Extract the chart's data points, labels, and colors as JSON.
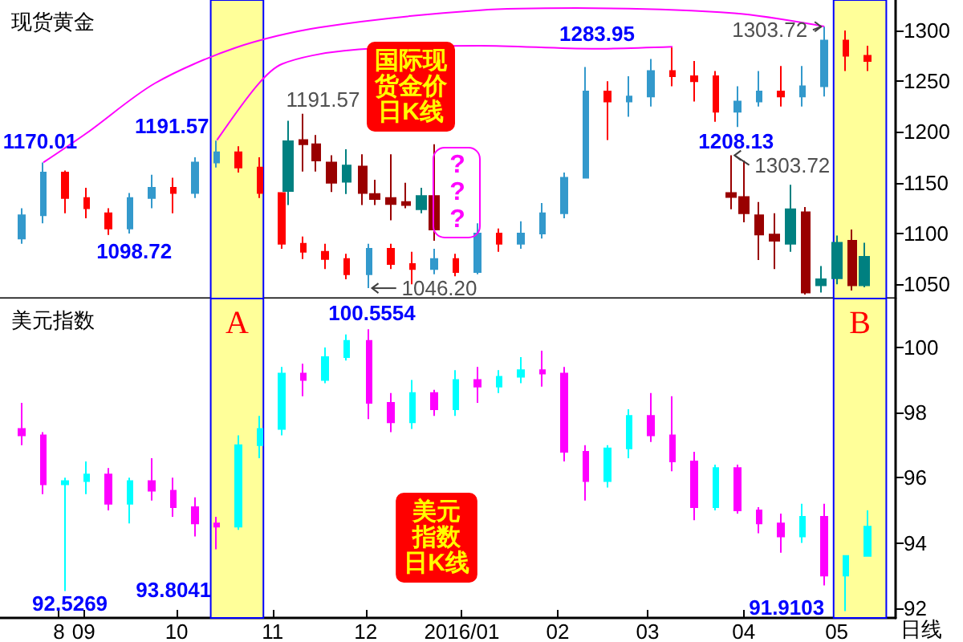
{
  "chart_data": [
    {
      "type": "candlestick",
      "title": "现货黄金",
      "x": [
        "2015-08-12",
        "2015-08-19",
        "2015-08-26",
        "2015-09-02",
        "2015-09-09",
        "2015-09-16",
        "2015-09-23",
        "2015-09-30",
        "2015-10-07",
        "2015-10-14",
        "2015-10-21",
        "2015-10-28",
        "2015-11-04",
        "2015-11-11",
        "2015-11-18",
        "2015-11-25",
        "2015-12-02",
        "2015-12-09",
        "2015-12-16",
        "2015-12-23",
        "2015-12-30",
        "2016-01-06",
        "2016-01-13",
        "2016-01-20",
        "2016-01-27",
        "2016-02-03",
        "2016-02-10",
        "2016-02-17",
        "2016-02-24",
        "2016-03-02",
        "2016-03-09",
        "2016-03-16",
        "2016-03-23",
        "2016-03-30",
        "2016-04-06",
        "2016-04-13",
        "2016-04-20",
        "2016-04-27",
        "2016-05-04",
        "2016-05-11"
      ],
      "series": [
        {
          "ohlc": [
            [
              1095,
              1125,
              1090,
              1118
            ],
            [
              1118,
              1170.01,
              1110,
              1160
            ],
            [
              1160,
              1162,
              1120,
              1135
            ],
            [
              1135,
              1145,
              1115,
              1125
            ],
            [
              1120,
              1125,
              1098.72,
              1105
            ],
            [
              1105,
              1140,
              1100,
              1135
            ],
            [
              1135,
              1158,
              1125,
              1145
            ],
            [
              1145,
              1155,
              1120,
              1140
            ],
            [
              1140,
              1175,
              1135,
              1170
            ],
            [
              1170,
              1191.57,
              1165,
              1180
            ],
            [
              1180,
              1186,
              1160,
              1165
            ],
            [
              1165,
              1175,
              1135,
              1140
            ],
            [
              1140,
              1140,
              1085,
              1090
            ],
            [
              1090,
              1097,
              1075,
              1082
            ],
            [
              1082,
              1090,
              1065,
              1075
            ],
            [
              1075,
              1080,
              1055,
              1060
            ],
            [
              1060,
              1090,
              1046.2,
              1085
            ],
            [
              1085,
              1090,
              1065,
              1070
            ],
            [
              1070,
              1082,
              1050,
              1065
            ],
            [
              1065,
              1085,
              1060,
              1075
            ],
            [
              1075,
              1080,
              1058,
              1062
            ],
            [
              1062,
              1110,
              1060,
              1100
            ],
            [
              1100,
              1105,
              1082,
              1090
            ],
            [
              1090,
              1112,
              1085,
              1100
            ],
            [
              1100,
              1130,
              1095,
              1120
            ],
            [
              1120,
              1160,
              1115,
              1155
            ],
            [
              1155,
              1264,
              1155,
              1240
            ],
            [
              1240,
              1250,
              1192,
              1230
            ],
            [
              1230,
              1255,
              1215,
              1235
            ],
            [
              1235,
              1272,
              1225,
              1260
            ],
            [
              1260,
              1283.95,
              1245,
              1255
            ],
            [
              1255,
              1270,
              1230,
              1250
            ],
            [
              1255,
              1260,
              1210,
              1220
            ],
            [
              1220,
              1245,
              1205,
              1230
            ],
            [
              1230,
              1260,
              1225,
              1240
            ],
            [
              1240,
              1265,
              1225,
              1235
            ],
            [
              1235,
              1265,
              1225,
              1245
            ],
            [
              1245,
              1303.72,
              1235,
              1290
            ],
            [
              1290,
              1300,
              1260,
              1275
            ],
            [
              1275,
              1285,
              1260,
              1270
            ]
          ],
          "colors": [
            "#3399cc",
            "#3399cc",
            "#ff0000",
            "#ff0000",
            "#ff0000",
            "#3399cc",
            "#3399cc",
            "#ff0000",
            "#3399cc",
            "#3399cc",
            "#ff0000",
            "#ff0000",
            "#ff0000",
            "#ff0000",
            "#ff0000",
            "#ff0000",
            "#3399cc",
            "#ff0000",
            "#ff0000",
            "#3399cc",
            "#ff0000",
            "#3399cc",
            "#ff0000",
            "#3399cc",
            "#3399cc",
            "#3399cc",
            "#3399cc",
            "#ff0000",
            "#3399cc",
            "#3399cc",
            "#ff0000",
            "#ff0000",
            "#ff0000",
            "#3399cc",
            "#3399cc",
            "#ff0000",
            "#3399cc",
            "#3399cc",
            "#ff0000",
            "#ff0000"
          ]
        },
        {
          "x": [
            "2015-11-06",
            "2015-11-11",
            "2015-11-15",
            "2015-11-20",
            "2015-11-25",
            "2015-11-30",
            "2015-12-04",
            "2015-12-09",
            "2015-12-14",
            "2015-12-19",
            "2015-12-23"
          ],
          "ohlc": [
            [
              1142,
              1211,
              1128,
              1191
            ],
            [
              1192,
              1218,
              1161,
              1188
            ],
            [
              1188,
              1197,
              1161,
              1172
            ],
            [
              1170,
              1177,
              1141,
              1150
            ],
            [
              1151,
              1183,
              1139,
              1167
            ],
            [
              1166,
              1178,
              1128,
              1140
            ],
            [
              1139,
              1153,
              1128,
              1134
            ],
            [
              1135,
              1178,
              1113,
              1129
            ],
            [
              1131,
              1150,
              1125,
              1128
            ],
            [
              1124,
              1145,
              1120,
              1137
            ],
            [
              1137,
              1188,
              1093,
              1104
            ]
          ],
          "colors": [
            "#008080",
            "#990000",
            "#990000",
            "#990000",
            "#008080",
            "#990000",
            "#990000",
            "#990000",
            "#990000",
            "#008080",
            "#990000"
          ]
        },
        {
          "x": [
            "2016-03-28",
            "2016-04-01",
            "2016-04-06",
            "2016-04-11",
            "2016-04-16",
            "2016-04-21",
            "2016-04-26",
            "2016-05-01",
            "2016-05-06",
            "2016-05-10"
          ],
          "ohlc": [
            [
              1140,
              1177,
              1124,
              1136
            ],
            [
              1136,
              1172,
              1111,
              1120
            ],
            [
              1118,
              1131,
              1074,
              1099
            ],
            [
              1099,
              1120,
              1065,
              1093
            ],
            [
              1090,
              1148,
              1082,
              1124
            ],
            [
              1121,
              1126,
              1040,
              1042
            ],
            [
              1049,
              1068,
              1042,
              1055
            ],
            [
              1056,
              1098,
              1050,
              1091
            ],
            [
              1093,
              1104,
              1044,
              1049
            ],
            [
              1049,
              1091,
              1047,
              1077
            ]
          ],
          "colors": [
            "#990000",
            "#990000",
            "#990000",
            "#990000",
            "#008080",
            "#990000",
            "#008080",
            "#008080",
            "#990000",
            "#008080"
          ]
        },
        {
          "type": "line",
          "color": "#ff00ff",
          "x": [
            "2015-08-19",
            "2015-09-02",
            "2015-09-24",
            "2015-10-20",
            "2015-11-16",
            "2016-01-07",
            "2016-02-07",
            "2016-03-29",
            "2016-04-27"
          ],
          "values": [
            1170,
            1199,
            1248,
            1283,
            1303,
            1320,
            1322,
            1317,
            1304
          ]
        },
        {
          "type": "line",
          "color": "#ff00ff",
          "x": [
            "2015-10-14",
            "2015-10-27",
            "2015-11-04",
            "2015-11-24",
            "2016-01-07",
            "2016-02-12",
            "2016-03-09"
          ],
          "values": [
            1192,
            1246,
            1267,
            1280,
            1285,
            1282,
            1284
          ]
        }
      ],
      "marker": "none",
      "xlim": [
        "2015-08-05",
        "2016-05-20"
      ],
      "ylim": [
        1036,
        1330
      ],
      "yticks": [
        1050,
        1100,
        1150,
        1200,
        1250,
        1300
      ],
      "tick_labels": "y",
      "bands": [
        {
          "axis": "x",
          "from": "2015-10-12",
          "to": "2015-10-29",
          "color": "#ffff99"
        },
        {
          "axis": "x",
          "from": "2016-04-30",
          "to": "2016-05-17",
          "color": "#ffff99"
        }
      ],
      "annotations": [
        {
          "text": "1170.01",
          "x": "2015-08-19",
          "y": 1170.01
        },
        {
          "text": "1098.72",
          "x": "2015-09-09",
          "y": 1098.72
        },
        {
          "text": "1191.57",
          "x": "2015-10-14",
          "y": 1191.57
        },
        {
          "text": "1191.57",
          "x": "2015-11-11",
          "y": 1218
        },
        {
          "text": "1046.20",
          "x": "2015-12-02",
          "y": 1046.2
        },
        {
          "text": "1283.95",
          "x": "2016-03-09",
          "y": 1283.95
        },
        {
          "text": "1303.72",
          "x": "2016-04-27",
          "y": 1303.72
        },
        {
          "text": "1208.13",
          "x": "2016-03-28",
          "y": 1177
        },
        {
          "text": "1303.72",
          "x": "2016-03-28",
          "y": 1177
        },
        "国际现货金价日K线",
        "???"
      ]
    },
    {
      "type": "candlestick",
      "title": "美元指数",
      "x": [
        "2015-08-12",
        "2015-08-19",
        "2015-08-26",
        "2015-09-02",
        "2015-09-09",
        "2015-09-16",
        "2015-09-23",
        "2015-09-30",
        "2015-10-07",
        "2015-10-14",
        "2015-10-21",
        "2015-10-28",
        "2015-11-04",
        "2015-11-11",
        "2015-11-18",
        "2015-11-25",
        "2015-12-02",
        "2015-12-09",
        "2015-12-16",
        "2015-12-23",
        "2015-12-30",
        "2016-01-06",
        "2016-01-13",
        "2016-01-20",
        "2016-01-27",
        "2016-02-03",
        "2016-02-10",
        "2016-02-17",
        "2016-02-24",
        "2016-03-02",
        "2016-03-09",
        "2016-03-16",
        "2016-03-23",
        "2016-03-30",
        "2016-04-06",
        "2016-04-13",
        "2016-04-20",
        "2016-04-27",
        "2016-05-04",
        "2016-05-11"
      ],
      "series": [
        {
          "ohlc": [
            [
              97.5,
              98.3,
              97.0,
              97.3
            ],
            [
              97.3,
              97.4,
              95.5,
              95.8
            ],
            [
              95.8,
              96.0,
              92.5269,
              95.9
            ],
            [
              95.9,
              96.5,
              95.5,
              96.1
            ],
            [
              96.1,
              96.3,
              95.0,
              95.2
            ],
            [
              95.2,
              96.0,
              94.6,
              95.9
            ],
            [
              95.9,
              96.6,
              95.3,
              95.6
            ],
            [
              95.6,
              96.0,
              94.8,
              95.1
            ],
            [
              95.1,
              95.4,
              94.2,
              94.6
            ],
            [
              94.6,
              94.8,
              93.8041,
              94.5
            ],
            [
              94.5,
              97.3,
              94.4,
              97.0
            ],
            [
              97.0,
              97.9,
              96.6,
              97.5
            ],
            [
              97.5,
              99.4,
              97.3,
              99.2
            ],
            [
              99.2,
              99.5,
              98.5,
              99.0
            ],
            [
              99.0,
              100.0,
              98.9,
              99.7
            ],
            [
              99.7,
              100.4,
              99.6,
              100.2
            ],
            [
              100.2,
              100.5554,
              97.8,
              98.3
            ],
            [
              98.3,
              98.6,
              97.4,
              97.7
            ],
            [
              97.7,
              99.0,
              97.5,
              98.6
            ],
            [
              98.6,
              98.7,
              97.9,
              98.1
            ],
            [
              98.1,
              99.3,
              97.9,
              99.0
            ],
            [
              99.0,
              99.4,
              98.3,
              98.8
            ],
            [
              98.8,
              99.3,
              98.6,
              99.1
            ],
            [
              99.1,
              99.7,
              98.9,
              99.3
            ],
            [
              99.3,
              99.9,
              98.8,
              99.2
            ],
            [
              99.2,
              99.4,
              96.5,
              96.8
            ],
            [
              96.8,
              97.0,
              95.3,
              95.9
            ],
            [
              95.9,
              97.0,
              95.7,
              96.9
            ],
            [
              96.9,
              98.1,
              96.6,
              97.9
            ],
            [
              97.9,
              98.6,
              97.1,
              97.3
            ],
            [
              97.3,
              98.5,
              96.2,
              96.5
            ],
            [
              96.5,
              96.8,
              94.7,
              95.1
            ],
            [
              95.1,
              96.4,
              95.0,
              96.3
            ],
            [
              96.3,
              96.4,
              94.9,
              95.0
            ],
            [
              95.0,
              95.1,
              94.3,
              94.6
            ],
            [
              94.6,
              94.9,
              93.7,
              94.2
            ],
            [
              94.2,
              95.2,
              94.0,
              94.8
            ],
            [
              94.8,
              95.2,
              92.7,
              93.0
            ],
            [
              93.0,
              93.6,
              91.9103,
              93.6
            ],
            [
              93.6,
              95.0,
              93.6,
              94.5
            ]
          ],
          "colors": [
            "#ff00ff",
            "#ff00ff",
            "#00ffff",
            "#00ffff",
            "#ff00ff",
            "#00ffff",
            "#ff00ff",
            "#ff00ff",
            "#ff00ff",
            "#ff00ff",
            "#00ffff",
            "#00ffff",
            "#00ffff",
            "#ff00ff",
            "#00ffff",
            "#00ffff",
            "#ff00ff",
            "#ff00ff",
            "#00ffff",
            "#ff00ff",
            "#00ffff",
            "#ff00ff",
            "#00ffff",
            "#00ffff",
            "#ff00ff",
            "#ff00ff",
            "#ff00ff",
            "#00ffff",
            "#00ffff",
            "#ff00ff",
            "#ff00ff",
            "#ff00ff",
            "#00ffff",
            "#ff00ff",
            "#ff00ff",
            "#ff00ff",
            "#00ffff",
            "#ff00ff",
            "#00ffff",
            "#00ffff"
          ]
        }
      ],
      "xlim": [
        "2015-08-05",
        "2016-05-20"
      ],
      "xticks": [
        {
          "value": "2015-08-24",
          "label": "8"
        },
        {
          "value": "2015-09-01",
          "label": "09"
        },
        {
          "value": "2015-10-01",
          "label": "10"
        },
        {
          "value": "2015-11-01",
          "label": "11"
        },
        {
          "value": "2015-12-01",
          "label": "12"
        },
        {
          "value": "2016-01-01",
          "label": "2016/01"
        },
        {
          "value": "2016-02-01",
          "label": "02"
        },
        {
          "value": "2016-03-01",
          "label": "03"
        },
        {
          "value": "2016-04-01",
          "label": "04"
        },
        {
          "value": "2016-05-01",
          "label": "05"
        }
      ],
      "ylim": [
        91.7,
        101.5
      ],
      "yticks": [
        92,
        94,
        96,
        98,
        100
      ],
      "bands": [
        {
          "axis": "x",
          "from": "2015-10-12",
          "to": "2015-10-29",
          "color": "#ffff99",
          "label": "A"
        },
        {
          "axis": "x",
          "from": "2016-04-30",
          "to": "2016-05-17",
          "color": "#ffff99",
          "label": "B"
        }
      ],
      "annotations": [
        {
          "text": "100.5554",
          "x": "2015-12-02",
          "y": 100.5554
        },
        {
          "text": "92.5269",
          "x": "2015-08-26",
          "y": 92.5269
        },
        {
          "text": "93.8041",
          "x": "2015-10-14",
          "y": 93.8041
        },
        {
          "text": "91.9103",
          "x": "2016-05-04",
          "y": 91.9103
        },
        "美元指数日K线",
        "日线"
      ]
    }
  ]
}
